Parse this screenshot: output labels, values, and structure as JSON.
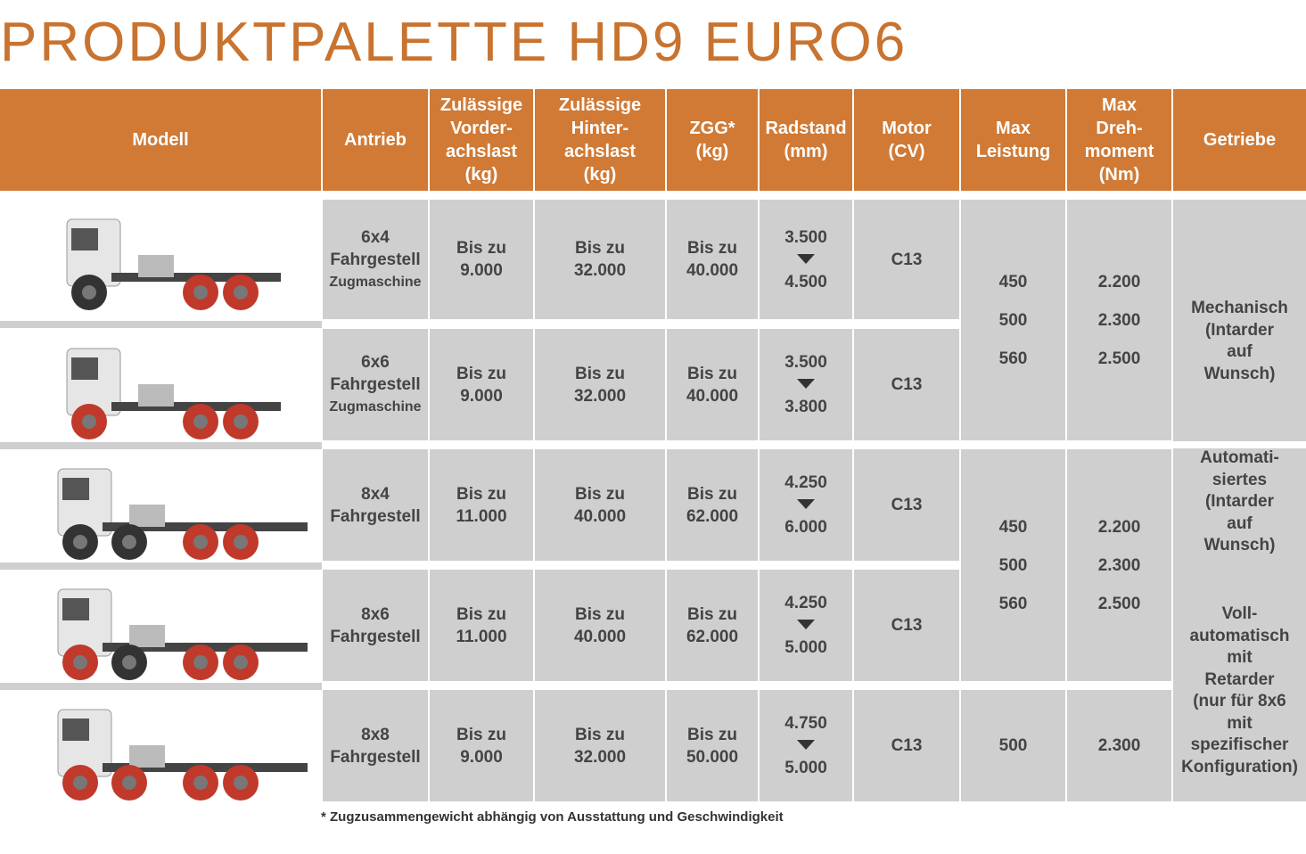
{
  "title": "PRODUKTPALETTE HD9 EURO6",
  "headers": [
    [
      "Modell"
    ],
    [
      "Antrieb"
    ],
    [
      "Zulässige",
      "Vorder-",
      "achslast",
      "(kg)"
    ],
    [
      "Zulässige",
      "Hinter-",
      "achslast",
      "(kg)"
    ],
    [
      "ZGG*",
      "(kg)"
    ],
    [
      "Radstand",
      "(mm)"
    ],
    [
      "Motor",
      "(CV)"
    ],
    [
      "Max",
      "Leistung"
    ],
    [
      "Max",
      "Dreh-",
      "moment",
      "(Nm)"
    ],
    [
      "Getriebe"
    ]
  ],
  "rows": [
    {
      "antrieb": [
        "6x4",
        "Fahrgestell",
        "Zugmaschine"
      ],
      "vorderachslast": [
        "Bis zu",
        "9.000"
      ],
      "hinterachslast": [
        "Bis zu",
        "32.000"
      ],
      "zgg": [
        "Bis zu",
        "40.000"
      ],
      "radstand": [
        "3.500",
        "4.500"
      ],
      "motor": [
        "C13"
      ]
    },
    {
      "antrieb": [
        "6x6",
        "Fahrgestell",
        "Zugmaschine"
      ],
      "vorderachslast": [
        "Bis zu",
        "9.000"
      ],
      "hinterachslast": [
        "Bis zu",
        "32.000"
      ],
      "zgg": [
        "Bis zu",
        "40.000"
      ],
      "radstand": [
        "3.500",
        "3.800"
      ],
      "motor": [
        "C13"
      ]
    },
    {
      "antrieb": [
        "8x4",
        "Fahrgestell"
      ],
      "vorderachslast": [
        "Bis zu",
        "11.000"
      ],
      "hinterachslast": [
        "Bis zu",
        "40.000"
      ],
      "zgg": [
        "Bis zu",
        "62.000"
      ],
      "radstand": [
        "4.250",
        "6.000"
      ],
      "motor": [
        "C13"
      ]
    },
    {
      "antrieb": [
        "8x6",
        "Fahrgestell"
      ],
      "vorderachslast": [
        "Bis zu",
        "11.000"
      ],
      "hinterachslast": [
        "Bis zu",
        "40.000"
      ],
      "zgg": [
        "Bis zu",
        "62.000"
      ],
      "radstand": [
        "4.250",
        "5.000"
      ],
      "motor": [
        "C13"
      ]
    },
    {
      "antrieb": [
        "8x8",
        "Fahrgestell"
      ],
      "vorderachslast": [
        "Bis zu",
        "9.000"
      ],
      "hinterachslast": [
        "Bis zu",
        "32.000"
      ],
      "zgg": [
        "Bis zu",
        "50.000"
      ],
      "radstand": [
        "4.750",
        "5.000"
      ],
      "motor": [
        "C13"
      ]
    }
  ],
  "power_groups": [
    {
      "leistung": [
        "450",
        "500",
        "560"
      ],
      "drehmoment": [
        "2.200",
        "2.300",
        "2.500"
      ]
    },
    {
      "leistung": [
        "450",
        "500",
        "560"
      ],
      "drehmoment": [
        "2.200",
        "2.300",
        "2.500"
      ]
    },
    {
      "leistung": [
        "500"
      ],
      "drehmoment": [
        "2.300"
      ]
    }
  ],
  "getriebe": [
    [
      "Mechanisch",
      "(Intarder",
      "auf",
      "Wunsch)"
    ],
    [
      "Automati-",
      "siertes",
      "(Intarder",
      "auf",
      "Wunsch)"
    ],
    [
      "Voll-",
      "automatisch",
      "mit",
      "Retarder",
      "(nur für 8x6",
      "mit",
      "spezifischer",
      "Konfiguration)"
    ]
  ],
  "footnote": "* Zugzusammengewicht abhängig von Ausstattung und Geschwindigkeit"
}
